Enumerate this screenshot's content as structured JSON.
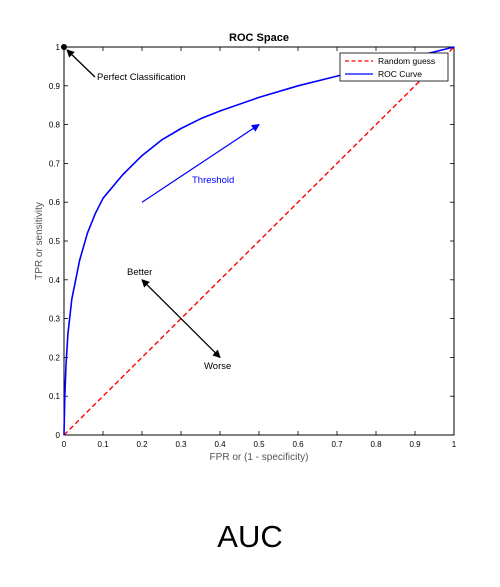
{
  "chart_data": {
    "type": "line",
    "title": "ROC Space",
    "xlabel": "FPR or (1 - specificity)",
    "ylabel": "TPR or sensitivity",
    "xlim": [
      0,
      1
    ],
    "ylim": [
      0,
      1
    ],
    "x_ticks": [
      "0",
      "0.1",
      "0.2",
      "0.3",
      "0.4",
      "0.5",
      "0.6",
      "0.7",
      "0.8",
      "0.9",
      "1"
    ],
    "y_ticks": [
      "0",
      "0.1",
      "0.2",
      "0.3",
      "0.4",
      "0.5",
      "0.6",
      "0.7",
      "0.8",
      "0.9",
      "1"
    ],
    "grid": false,
    "legend_position": "top-right",
    "series": [
      {
        "name": "Random guess",
        "style": "dashed",
        "color": "#ff0000",
        "points": [
          [
            0,
            0
          ],
          [
            1,
            1
          ]
        ]
      },
      {
        "name": "ROC Curve",
        "style": "solid",
        "color": "#0000ff",
        "points": [
          [
            0,
            0
          ],
          [
            0.002,
            0.1
          ],
          [
            0.005,
            0.18
          ],
          [
            0.01,
            0.26
          ],
          [
            0.02,
            0.35
          ],
          [
            0.04,
            0.45
          ],
          [
            0.06,
            0.52
          ],
          [
            0.08,
            0.57
          ],
          [
            0.1,
            0.61
          ],
          [
            0.15,
            0.67
          ],
          [
            0.2,
            0.72
          ],
          [
            0.25,
            0.76
          ],
          [
            0.3,
            0.79
          ],
          [
            0.35,
            0.815
          ],
          [
            0.4,
            0.835
          ],
          [
            0.5,
            0.87
          ],
          [
            0.6,
            0.9
          ],
          [
            0.7,
            0.925
          ],
          [
            0.8,
            0.95
          ],
          [
            0.9,
            0.975
          ],
          [
            1,
            1
          ]
        ]
      }
    ],
    "annotations": [
      {
        "id": "perfect",
        "text": "Perfect Classification",
        "color": "#000000",
        "point": [
          0,
          1
        ]
      },
      {
        "id": "threshold",
        "text": "Threshold",
        "color": "#0000ff",
        "arrow_from": [
          0.2,
          0.6
        ],
        "arrow_to": [
          0.5,
          0.8
        ]
      },
      {
        "id": "better",
        "text": "Better",
        "color": "#000000",
        "arrow_to": [
          0.2,
          0.4
        ]
      },
      {
        "id": "worse",
        "text": "Worse",
        "color": "#000000",
        "arrow_to": [
          0.4,
          0.2
        ]
      }
    ]
  },
  "caption": "AUC"
}
